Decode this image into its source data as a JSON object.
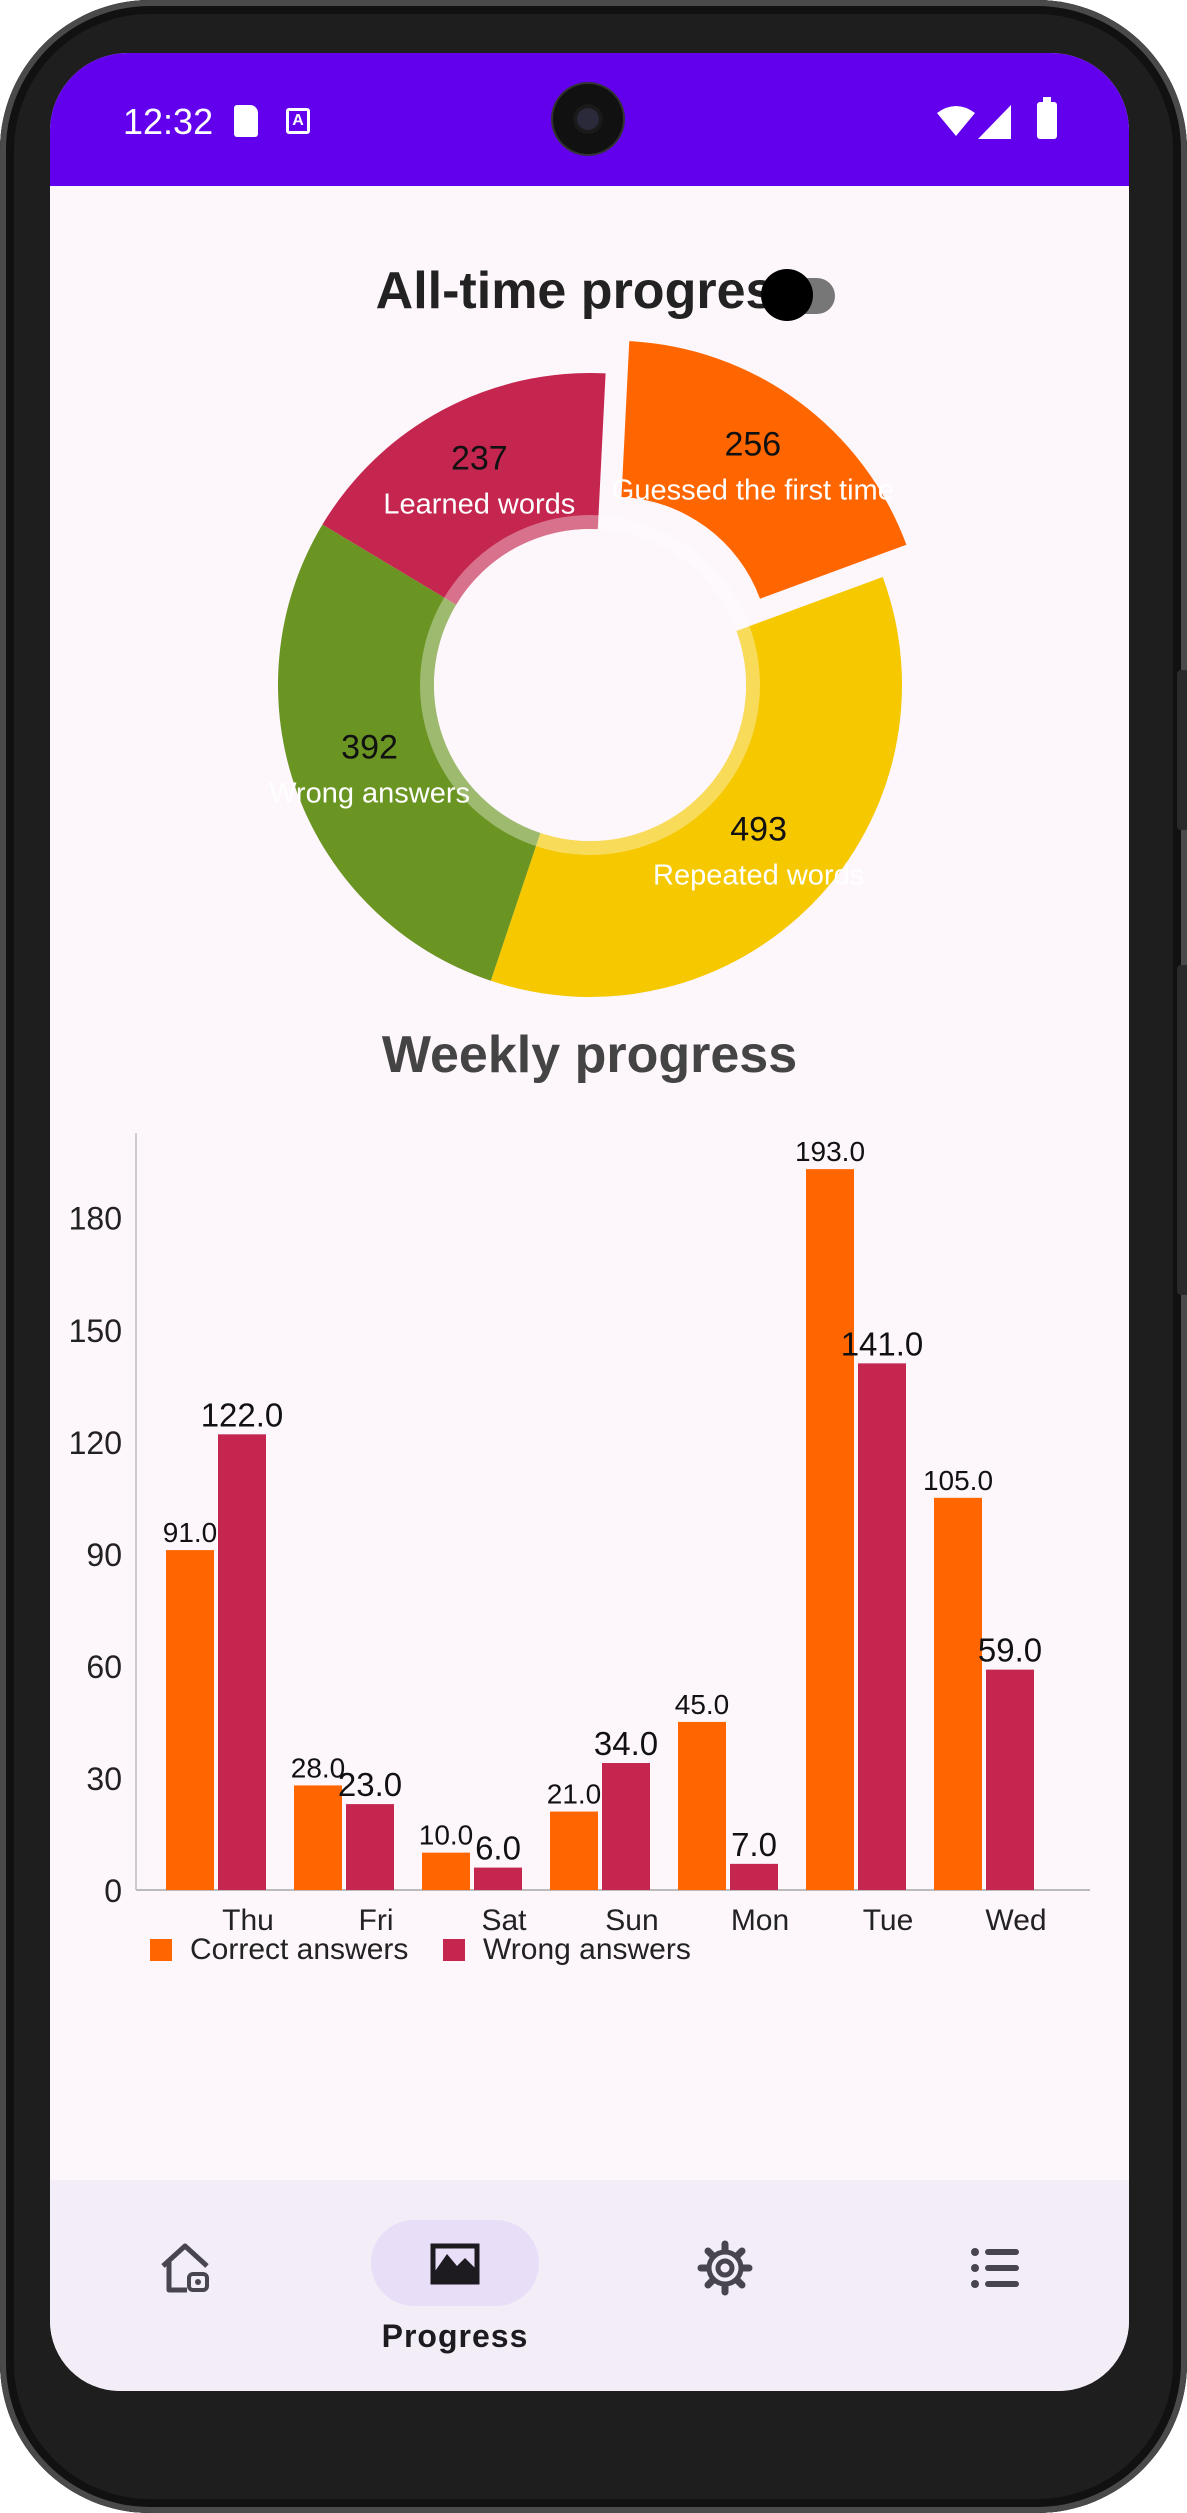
{
  "status_bar": {
    "time": "12:32",
    "background_color": "#6200ee",
    "icons": [
      "sd-card-icon",
      "a-notification-icon",
      "wifi-icon",
      "signal-icon",
      "battery-icon"
    ]
  },
  "alltime": {
    "title": "All-time progress",
    "toggle_on": false,
    "slices": [
      {
        "value": 256,
        "label": "Guessed the first time",
        "color": "#ff6600"
      },
      {
        "value": 493,
        "label": "Repeated words",
        "color": "#f5c800"
      },
      {
        "value": 392,
        "label": "Wrong answers",
        "color": "#6b9523"
      },
      {
        "value": 237,
        "label": "Learned words",
        "color": "#c4264f"
      }
    ]
  },
  "weekly": {
    "title": "Weekly progress"
  },
  "chart_data": {
    "type": "bar",
    "categories": [
      "Thu",
      "Fri",
      "Sat",
      "Sun",
      "Mon",
      "Tue",
      "Wed"
    ],
    "series": [
      {
        "name": "Correct answers",
        "color": "#ff6600",
        "values": [
          91.0,
          28.0,
          10.0,
          21.0,
          45.0,
          193.0,
          105.0
        ],
        "labels": [
          "91.0",
          "28.0",
          "10.0",
          "21.0",
          "45.0",
          "193.0",
          "105.0"
        ]
      },
      {
        "name": "Wrong answers",
        "color": "#c4264f",
        "values": [
          122.0,
          23.0,
          6.0,
          34.0,
          7.0,
          141.0,
          59.0
        ],
        "labels": [
          "122.0",
          "23.0",
          "6.0",
          "34.0",
          "7.0",
          "141.0",
          "59.0"
        ]
      }
    ],
    "yticks": [
      "0",
      "30",
      "60",
      "90",
      "120",
      "150",
      "180"
    ],
    "ylim": [
      0,
      200
    ],
    "legend_position": "bottom-left",
    "grid": false
  },
  "bottom_nav": {
    "items": [
      {
        "icon": "home-icon",
        "label": "",
        "selected": false
      },
      {
        "icon": "progress-chart-icon",
        "label": "Progress",
        "selected": true
      },
      {
        "icon": "settings-gear-icon",
        "label": "",
        "selected": false
      },
      {
        "icon": "list-icon",
        "label": "",
        "selected": false
      }
    ]
  }
}
